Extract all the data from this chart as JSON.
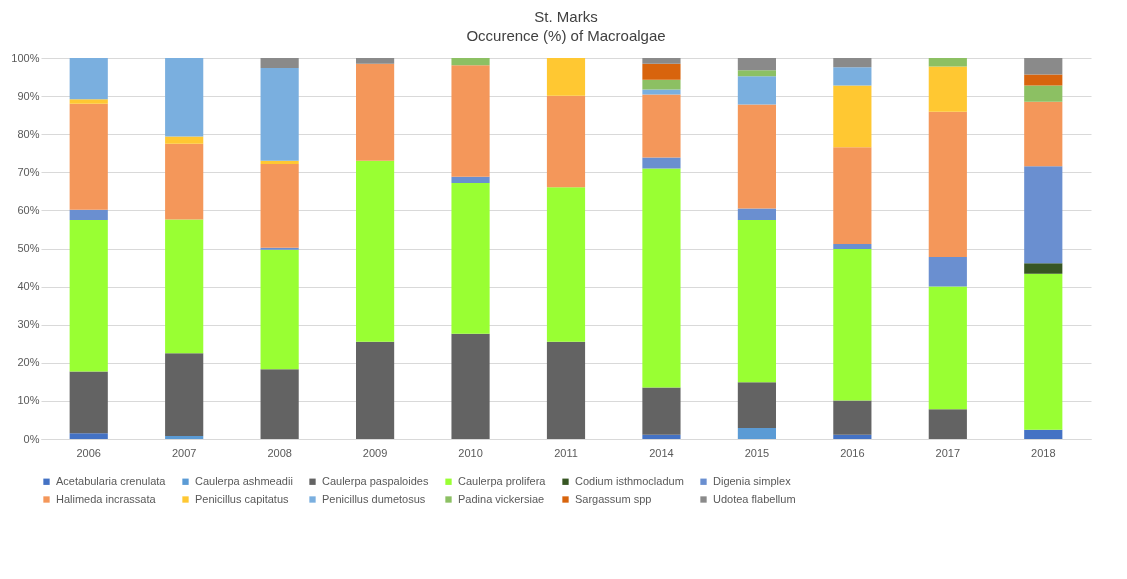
{
  "chart_data": {
    "type": "bar",
    "stacked": true,
    "title": "St. Marks",
    "subtitle": "Occurence (%) of Macroalgae",
    "categories": [
      "2006",
      "2007",
      "2008",
      "2009",
      "2010",
      "2011",
      "2014",
      "2015",
      "2016",
      "2017",
      "2018"
    ],
    "ylim": [
      0,
      100
    ],
    "yticks": [
      {
        "value": 0,
        "label": "0%"
      },
      {
        "value": 10,
        "label": "10%"
      },
      {
        "value": 20,
        "label": "20%"
      },
      {
        "value": 30,
        "label": "30%"
      },
      {
        "value": 40,
        "label": "40%"
      },
      {
        "value": 50,
        "label": "50%"
      },
      {
        "value": 60,
        "label": "60%"
      },
      {
        "value": 70,
        "label": "70%"
      },
      {
        "value": 80,
        "label": "80%"
      },
      {
        "value": 90,
        "label": "90%"
      },
      {
        "value": 100,
        "label": "100%"
      }
    ],
    "grid": "y",
    "legend": "bottom",
    "series": [
      {
        "name": "Acetabularia crenulata",
        "color": "#4472c4",
        "values": [
          1.5,
          null,
          null,
          null,
          null,
          null,
          1.1,
          null,
          1.1,
          null,
          2.4
        ]
      },
      {
        "name": "Caulerpa ashmeadii",
        "color": "#5b9bd5",
        "values": [
          null,
          0.8,
          null,
          null,
          null,
          null,
          null,
          2.9,
          null,
          null,
          null
        ]
      },
      {
        "name": "Caulerpa paspaloides",
        "color": "#636363",
        "values": [
          16.2,
          21.7,
          18.3,
          25.5,
          27.6,
          25.5,
          12.4,
          12,
          9,
          7.8,
          null
        ]
      },
      {
        "name": "Caulerpa prolifera",
        "color": "#99ff33",
        "values": [
          39.8,
          35.1,
          31.4,
          47.5,
          39.6,
          40.6,
          57.5,
          42.6,
          39.8,
          32.2,
          41
        ]
      },
      {
        "name": "Codium isthmocladum",
        "color": "#375623",
        "values": [
          null,
          null,
          null,
          null,
          null,
          null,
          null,
          null,
          null,
          null,
          2.7
        ]
      },
      {
        "name": "Digenia simplex",
        "color": "#6a8fd0",
        "values": [
          2.7,
          null,
          0.5,
          null,
          1.6,
          null,
          2.9,
          3,
          1.3,
          7.8,
          25.5
        ]
      },
      {
        "name": "Halimeda incrassata",
        "color": "#f4975a",
        "values": [
          27.8,
          19.9,
          22,
          25.5,
          29.3,
          24,
          16.5,
          27.3,
          25.4,
          38.1,
          16.9
        ]
      },
      {
        "name": "Penicillus capitatus",
        "color": "#ffc832",
        "values": [
          1.2,
          1.9,
          0.8,
          null,
          null,
          9.9,
          null,
          null,
          16.2,
          11.9,
          null
        ]
      },
      {
        "name": "Penicillus dumetosus",
        "color": "#7aafdf",
        "values": [
          10.8,
          20.6,
          24.4,
          null,
          null,
          null,
          1.3,
          7.4,
          4.8,
          null,
          null
        ]
      },
      {
        "name": "Padina vickersiae",
        "color": "#8cc063",
        "values": [
          null,
          null,
          null,
          null,
          1.9,
          null,
          2.6,
          1.6,
          null,
          2.2,
          4.3
        ]
      },
      {
        "name": "Sargassum spp",
        "color": "#d8640d",
        "values": [
          null,
          null,
          null,
          null,
          null,
          null,
          4.2,
          null,
          null,
          null,
          2.9
        ]
      },
      {
        "name": "Udotea flabellum",
        "color": "#8a8a8a",
        "values": [
          null,
          null,
          2.6,
          1.5,
          null,
          null,
          1.5,
          3.2,
          2.4,
          null,
          4.3
        ]
      }
    ]
  }
}
